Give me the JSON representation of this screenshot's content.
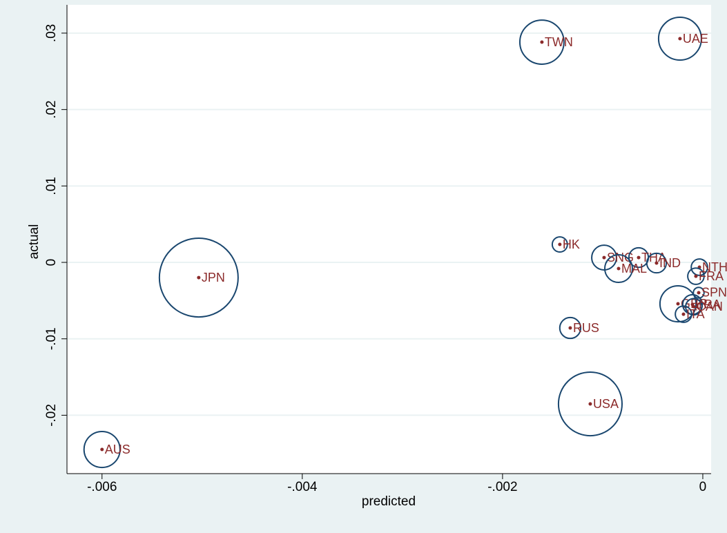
{
  "chart_data": {
    "type": "scatter",
    "x_label": "predicted",
    "y_label": "actual",
    "xlim": [
      -0.00635,
      8.3e-05
    ],
    "ylim": [
      -0.02764,
      0.0337
    ],
    "xticks": [
      {
        "value": -0.006,
        "label": "-.006"
      },
      {
        "value": -0.004,
        "label": "-.004"
      },
      {
        "value": -0.002,
        "label": "-.002"
      },
      0
    ],
    "yticks": [
      {
        "value": -0.02,
        "label": "-.02"
      },
      {
        "value": -0.01,
        "label": "-.01"
      },
      0,
      {
        "value": 0.01,
        "label": ".01"
      },
      {
        "value": 0.02,
        "label": ".02"
      },
      {
        "value": 0.03,
        "label": ".03"
      }
    ],
    "grid": true,
    "marker_color": "#8b2a2a",
    "bubble_color": "#1a476f",
    "labels": [
      "AUS",
      "JPN",
      "TWN",
      "UAE",
      "HK",
      "SNG",
      "THA",
      "MAL",
      "IND",
      "NTH",
      "FRA",
      "SPN",
      "GER",
      "BRA",
      "CAN",
      "ITA",
      "RUS",
      "USA"
    ],
    "x": [
      -0.006,
      -0.005034,
      -0.001607,
      -0.000228,
      -0.001428,
      -0.000986,
      -0.000641,
      -0.000841,
      -0.000462,
      -3.4e-05,
      -6.9e-05,
      -4.1e-05,
      -0.000248,
      -0.000103,
      -9e-05,
      -0.000193,
      -0.001324,
      -0.001124
    ],
    "y": [
      -0.02448,
      -0.00199,
      0.02882,
      0.02927,
      0.00235,
      0.00063,
      0.00063,
      -0.00081,
      -9e-05,
      -0.00063,
      -0.00181,
      -0.00397,
      -0.00542,
      -0.00551,
      -0.0058,
      -0.00678,
      -0.00858,
      -0.01852
    ],
    "sizes": [
      6.8,
      32.5,
      10.2,
      9.6,
      1.2,
      3.2,
      2.0,
      4.0,
      2.0,
      1.4,
      1.4,
      0.6,
      6.8,
      2.0,
      1.4,
      1.4,
      2.3,
      21.2
    ]
  }
}
